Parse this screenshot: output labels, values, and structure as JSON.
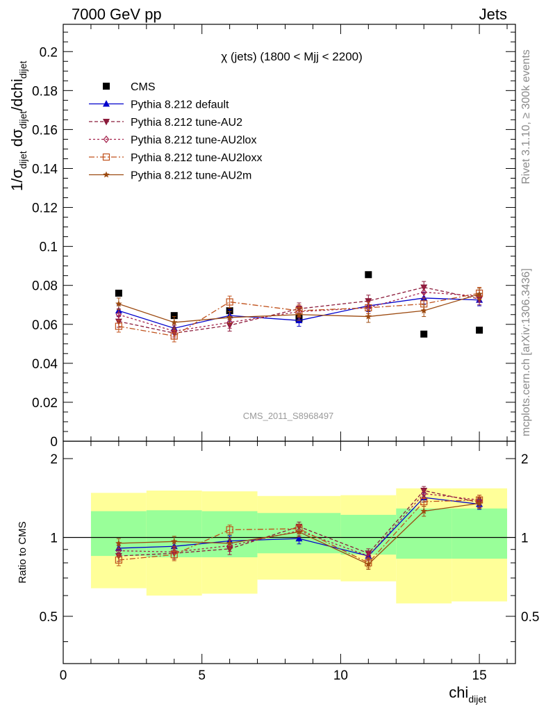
{
  "header": {
    "left": "7000 GeV pp",
    "right": "Jets"
  },
  "side_text": {
    "rivet": "Rivet 3.1.10, ≥ 300k events",
    "mcplots": "mcplots.cern.ch [arXiv:1306.3436]"
  },
  "chart_data": [
    {
      "type": "scatter",
      "title": "χ (jets) (1800 < Mjj < 2200)",
      "ylabel": {
        "main": "1/σ",
        "sub1": "dijet",
        "mid": " dσ",
        "sub2": "dijet",
        "tail": "/dchi",
        "sub3": "dijet"
      },
      "watermark": "CMS_2011_S8968497",
      "xlim": [
        0,
        16.3
      ],
      "ylim": [
        0,
        0.214
      ],
      "yticks": [
        0,
        0.02,
        0.04,
        0.06,
        0.08,
        0.1,
        0.12,
        0.14,
        0.16,
        0.18,
        0.2
      ],
      "ytick_labels": [
        "0",
        "0.02",
        "0.04",
        "0.06",
        "0.08",
        "0.1",
        "0.12",
        "0.14",
        "0.16",
        "0.18",
        "0.2"
      ],
      "x": [
        2,
        4,
        6,
        8.5,
        11,
        13,
        15
      ],
      "legend": [
        "CMS",
        "Pythia 8.212 default",
        "Pythia 8.212 tune-AU2",
        "Pythia 8.212 tune-AU2lox",
        "Pythia 8.212 tune-AU2loxx",
        "Pythia 8.212 tune-AU2m"
      ],
      "series": [
        {
          "name": "CMS",
          "color": "#000000",
          "values": [
            0.076,
            0.0645,
            0.067,
            0.063,
            0.0855,
            0.055,
            0.057
          ]
        },
        {
          "name": "Pythia 8.212 default",
          "color": "#0000cc",
          "values": [
            0.067,
            0.058,
            0.0645,
            0.062,
            0.0695,
            0.0735,
            0.0725
          ],
          "err": [
            0.003,
            0.003,
            0.003,
            0.003,
            0.003,
            0.003,
            0.003
          ]
        },
        {
          "name": "Pythia 8.212 tune-AU2",
          "color": "#8b1a3a",
          "values": [
            0.0615,
            0.0555,
            0.0595,
            0.068,
            0.072,
            0.079,
            0.073
          ],
          "err": [
            0.003,
            0.003,
            0.003,
            0.003,
            0.003,
            0.003,
            0.003
          ]
        },
        {
          "name": "Pythia 8.212 tune-AU2lox",
          "color": "#a3204a",
          "values": [
            0.065,
            0.0565,
            0.061,
            0.0665,
            0.0685,
            0.0765,
            0.0745
          ],
          "err": [
            0.003,
            0.003,
            0.003,
            0.003,
            0.003,
            0.003,
            0.003
          ]
        },
        {
          "name": "Pythia 8.212 tune-AU2loxx",
          "color": "#c0501a",
          "values": [
            0.059,
            0.054,
            0.0715,
            0.067,
            0.0685,
            0.0705,
            0.076
          ],
          "err": [
            0.003,
            0.003,
            0.003,
            0.003,
            0.003,
            0.003,
            0.003
          ]
        },
        {
          "name": "Pythia 8.212 tune-AU2m",
          "color": "#9c4a10",
          "values": [
            0.0705,
            0.061,
            0.0635,
            0.065,
            0.064,
            0.067,
            0.0755
          ],
          "err": [
            0.003,
            0.003,
            0.003,
            0.003,
            0.003,
            0.003,
            0.003
          ]
        }
      ]
    },
    {
      "type": "scatter",
      "ylabel": "Ratio to CMS",
      "xlabel": {
        "main": "chi",
        "sub": "dijet"
      },
      "xlim": [
        0,
        16.3
      ],
      "xticks": [
        0,
        5,
        10,
        15
      ],
      "xtick_labels": [
        "0",
        "5",
        "10",
        "15"
      ],
      "ylim": [
        0.33,
        2.33
      ],
      "yticks": [
        0.5,
        1,
        2
      ],
      "ytick_labels": [
        "0.5",
        "1",
        "2"
      ],
      "band_bins": [
        1,
        3,
        5,
        7,
        10,
        12,
        14,
        16
      ],
      "band_inner": [
        [
          0.85,
          1.26
        ],
        [
          0.84,
          1.27
        ],
        [
          0.84,
          1.26
        ],
        [
          0.87,
          1.24
        ],
        [
          0.86,
          1.22
        ],
        [
          0.83,
          1.29
        ],
        [
          0.83,
          1.29
        ]
      ],
      "band_outer": [
        [
          0.64,
          1.48
        ],
        [
          0.6,
          1.51
        ],
        [
          0.61,
          1.5
        ],
        [
          0.69,
          1.44
        ],
        [
          0.68,
          1.45
        ],
        [
          0.56,
          1.54
        ],
        [
          0.57,
          1.54
        ]
      ],
      "x": [
        2,
        4,
        6,
        8.5,
        11,
        13,
        15
      ],
      "series": [
        {
          "name": "Pythia 8.212 default",
          "color": "#0000cc",
          "values": [
            0.91,
            0.925,
            0.97,
            0.99,
            0.85,
            1.42,
            1.34
          ],
          "err": [
            0.04,
            0.045,
            0.045,
            0.045,
            0.035,
            0.055,
            0.06
          ]
        },
        {
          "name": "Pythia 8.212 tune-AU2",
          "color": "#8b1a3a",
          "values": [
            0.85,
            0.87,
            0.905,
            1.1,
            0.87,
            1.51,
            1.36
          ],
          "err": [
            0.04,
            0.045,
            0.045,
            0.045,
            0.035,
            0.055,
            0.06
          ]
        },
        {
          "name": "Pythia 8.212 tune-AU2lox",
          "color": "#a3204a",
          "values": [
            0.89,
            0.88,
            0.93,
            1.06,
            0.85,
            1.47,
            1.39
          ],
          "err": [
            0.04,
            0.045,
            0.045,
            0.045,
            0.035,
            0.055,
            0.06
          ]
        },
        {
          "name": "Pythia 8.212 tune-AU2loxx",
          "color": "#c0501a",
          "values": [
            0.82,
            0.86,
            1.07,
            1.08,
            0.8,
            1.37,
            1.39
          ],
          "err": [
            0.04,
            0.045,
            0.045,
            0.045,
            0.035,
            0.055,
            0.06
          ]
        },
        {
          "name": "Pythia 8.212 tune-AU2m",
          "color": "#9c4a10",
          "values": [
            0.95,
            0.965,
            0.95,
            1.05,
            0.79,
            1.26,
            1.35
          ],
          "err": [
            0.04,
            0.045,
            0.045,
            0.045,
            0.035,
            0.055,
            0.06
          ]
        }
      ]
    }
  ]
}
